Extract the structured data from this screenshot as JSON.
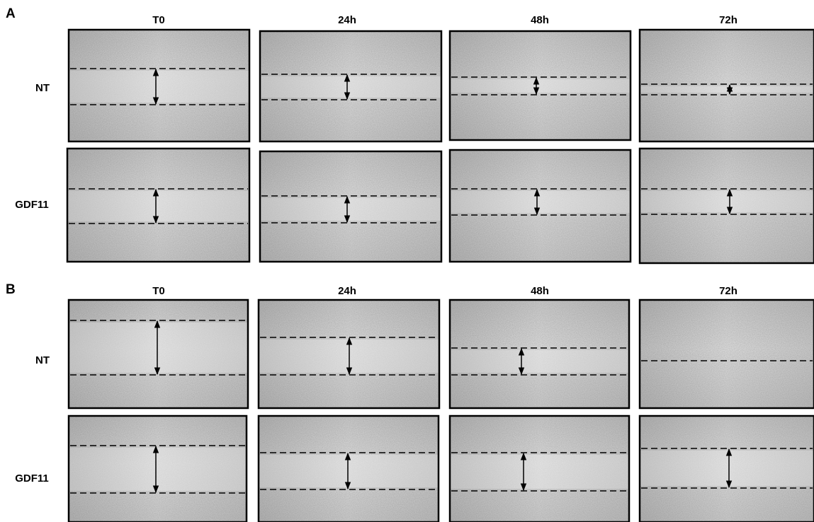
{
  "panels": [
    {
      "label": "A",
      "columns": [
        "T0",
        "24h",
        "48h",
        "72h"
      ],
      "rows": [
        "NT",
        "GDF11"
      ]
    },
    {
      "label": "B",
      "columns": [
        "T0",
        "24h",
        "48h",
        "72h"
      ],
      "rows": [
        "NT",
        "GDF11"
      ]
    }
  ]
}
